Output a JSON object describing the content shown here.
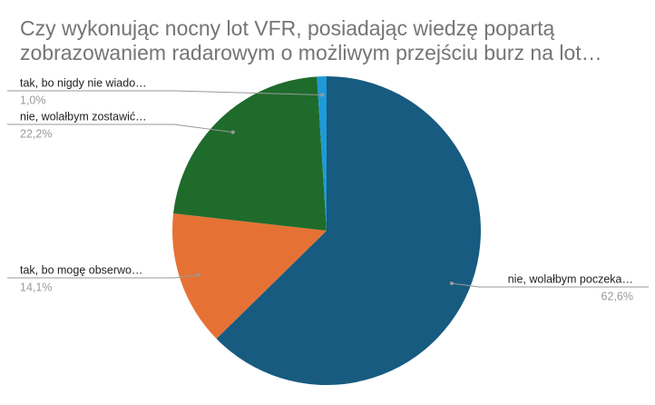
{
  "chart_data": {
    "type": "pie",
    "title": [
      "Czy wykonując nocny lot VFR, posiadając wiedzę popartą",
      "zobrazowaniem radarowym o możliwym przejściu burz na lot…"
    ],
    "categories": [
      "nie, wolałbym poczeka…",
      "tak, bo mogę obserwo…",
      "nie, wolałbym zostawić…",
      "tak, bo nigdy nie wiado…"
    ],
    "values": [
      62.6,
      14.1,
      22.2,
      1.0
    ],
    "value_labels": [
      "62,6%",
      "14,1%",
      "22,2%",
      "1,0%"
    ],
    "colors": [
      "#175b80",
      "#e57234",
      "#1f6b2b",
      "#1e9ad8"
    ]
  }
}
